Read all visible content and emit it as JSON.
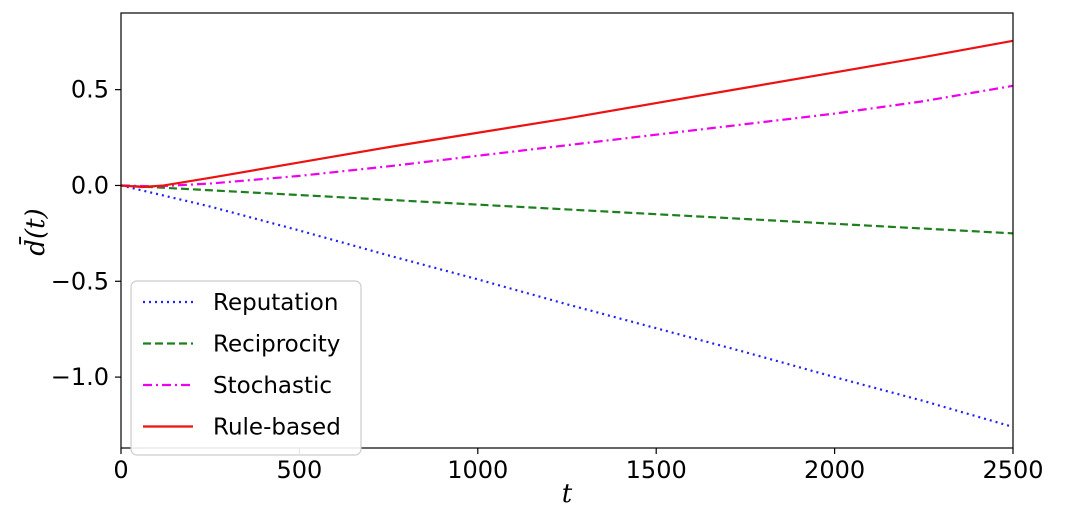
{
  "chart_data": {
    "type": "line",
    "title": "",
    "xlabel": "t",
    "ylabel": "d̄(t)",
    "xlim": [
      0,
      2500
    ],
    "ylim": [
      -1.37,
      0.9
    ],
    "xticks": [
      0,
      500,
      1000,
      1500,
      2000,
      2500
    ],
    "xtick_labels": [
      "0",
      "500",
      "1000",
      "1500",
      "2000",
      "2500"
    ],
    "yticks": [
      -1.0,
      -0.5,
      0.0,
      0.5
    ],
    "ytick_labels": [
      "−1.0",
      "−0.5",
      "0.0",
      "0.5"
    ],
    "grid": false,
    "legend_position": "lower-left",
    "series": [
      {
        "name": "Reputation",
        "color": "#2222ee",
        "style": "dotted",
        "x": [
          0,
          250,
          500,
          750,
          1000,
          1250,
          1500,
          1750,
          2000,
          2250,
          2500
        ],
        "y": [
          0.0,
          -0.11,
          -0.235,
          -0.365,
          -0.49,
          -0.62,
          -0.745,
          -0.87,
          -1.0,
          -1.125,
          -1.26
        ]
      },
      {
        "name": "Reciprocity",
        "color": "#1f7f1f",
        "style": "dashed",
        "x": [
          0,
          250,
          500,
          750,
          1000,
          1250,
          1500,
          1750,
          2000,
          2250,
          2500
        ],
        "y": [
          0.0,
          -0.025,
          -0.05,
          -0.075,
          -0.1,
          -0.125,
          -0.15,
          -0.175,
          -0.2,
          -0.225,
          -0.25
        ]
      },
      {
        "name": "Stochastic",
        "color": "#ee00ee",
        "style": "dashdot",
        "x": [
          0,
          100,
          250,
          500,
          750,
          1000,
          1250,
          1500,
          1750,
          2000,
          2250,
          2500
        ],
        "y": [
          0.0,
          -0.005,
          0.01,
          0.05,
          0.1,
          0.155,
          0.21,
          0.265,
          0.32,
          0.375,
          0.44,
          0.52
        ]
      },
      {
        "name": "Rule-based",
        "color": "#ee1111",
        "style": "solid",
        "x": [
          0,
          60,
          120,
          250,
          500,
          750,
          1000,
          1250,
          1500,
          1750,
          2000,
          2250,
          2500
        ],
        "y": [
          0.0,
          -0.008,
          0.0,
          0.04,
          0.12,
          0.2,
          0.275,
          0.35,
          0.43,
          0.51,
          0.59,
          0.67,
          0.755
        ]
      }
    ]
  }
}
